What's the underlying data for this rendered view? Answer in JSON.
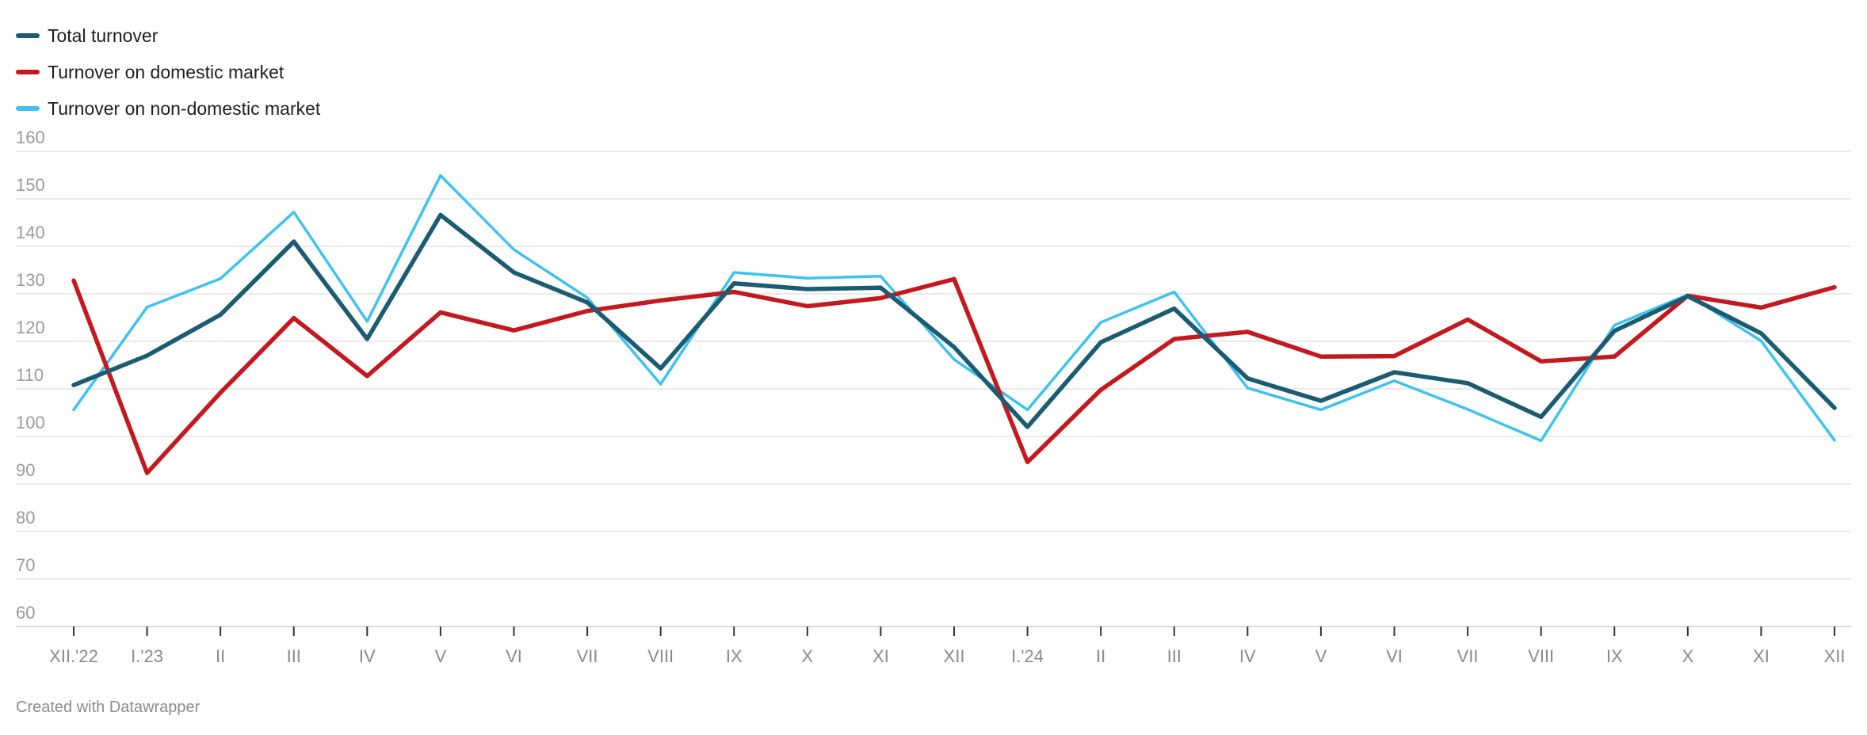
{
  "chart_data": {
    "type": "line",
    "categories": [
      "XII.'22",
      "I.'23",
      "II",
      "III",
      "IV",
      "V",
      "VI",
      "VII",
      "VIII",
      "IX",
      "X",
      "XI",
      "XII",
      "I.'24",
      "II",
      "III",
      "IV",
      "V",
      "VI",
      "VII",
      "VIII",
      "IX",
      "X",
      "XI",
      "XII"
    ],
    "ylim": [
      60,
      160
    ],
    "yticks": [
      60,
      70,
      80,
      90,
      100,
      110,
      120,
      130,
      140,
      150,
      160
    ],
    "grid": true,
    "legend_position": "top-left",
    "series": [
      {
        "name": "Total turnover",
        "color": "#1b5c73",
        "values": [
          110.8,
          117,
          125.6,
          141,
          120.5,
          146.6,
          134.5,
          128.2,
          114.3,
          132.2,
          131,
          131.3,
          118.8,
          102,
          119.8,
          126.9,
          112.2,
          107.5,
          113.5,
          111.2,
          104.1,
          122.2,
          129.5,
          121.7,
          106
        ]
      },
      {
        "name": "Turnover on domestic market",
        "color": "#c4191f",
        "values": [
          132.8,
          92.3,
          109.2,
          124.9,
          112.7,
          126.1,
          122.3,
          126.4,
          128.6,
          130.4,
          127.4,
          129.1,
          133.1,
          94.6,
          109.8,
          120.5,
          122,
          116.8,
          116.9,
          124.6,
          115.8,
          116.8,
          129.6,
          127.1,
          131.4
        ]
      },
      {
        "name": "Turnover on non-domestic market",
        "color": "#3ec3ef",
        "values": [
          105.6,
          127.2,
          133.2,
          147.2,
          124.2,
          154.9,
          139.3,
          129.2,
          111,
          134.5,
          133.3,
          133.7,
          116.2,
          105.6,
          124,
          130.4,
          110.2,
          105.6,
          111.7,
          105.7,
          99.1,
          123.4,
          129.8,
          120.1,
          99.2
        ]
      }
    ]
  },
  "footer": {
    "text": "Created with Datawrapper"
  }
}
